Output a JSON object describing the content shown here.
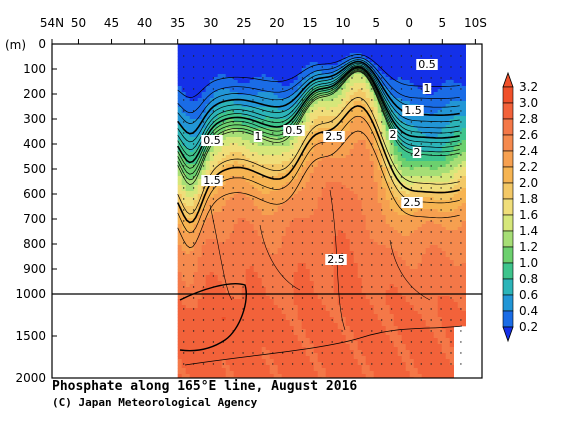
{
  "caption": {
    "title": "Phosphate along 165°E line, August 2016",
    "credit": "(C) Japan Meteorological Agency"
  },
  "chart_data": {
    "type": "heatmap",
    "title": "Phosphate along 165°E line, August 2016",
    "x_ticks": [
      "54N",
      "50",
      "45",
      "40",
      "35",
      "30",
      "25",
      "20",
      "15",
      "10",
      "5",
      "0",
      "5",
      "10S"
    ],
    "x_axis_latitudes": [
      54,
      50,
      45,
      40,
      35,
      30,
      25,
      20,
      15,
      10,
      5,
      0,
      -5,
      -10
    ],
    "y_unit_label": "(m)",
    "y_ticks_upper": [
      "0",
      "100",
      "200",
      "300",
      "400",
      "500",
      "600",
      "700",
      "800",
      "900",
      "1000"
    ],
    "y_ticks_lower": [
      "1500",
      "2000"
    ],
    "upper_depth_range": [
      0,
      1000
    ],
    "lower_depth_range": [
      1000,
      2000
    ],
    "data_latitude_range": [
      35,
      -8
    ],
    "contour_labels": [
      "0.5",
      "1",
      "1.5",
      "2",
      "2.5",
      "0.5",
      "1",
      "0.5",
      "1.5",
      "2.5",
      "2",
      "2.5"
    ],
    "colorbar": {
      "levels": [
        "3.2",
        "3.0",
        "2.8",
        "2.6",
        "2.4",
        "2.2",
        "2.0",
        "1.8",
        "1.6",
        "1.4",
        "1.2",
        "1.0",
        "0.8",
        "0.6",
        "0.4",
        "0.2"
      ],
      "colors": [
        "#f0502a",
        "#f2623a",
        "#f47848",
        "#f58a4e",
        "#f6a050",
        "#f6b452",
        "#f3c866",
        "#f0de7a",
        "#d6e77a",
        "#a6de76",
        "#6cd06e",
        "#3ec48c",
        "#2cb4b8",
        "#2296d6",
        "#1a6ce6",
        "#1430e8"
      ]
    }
  }
}
